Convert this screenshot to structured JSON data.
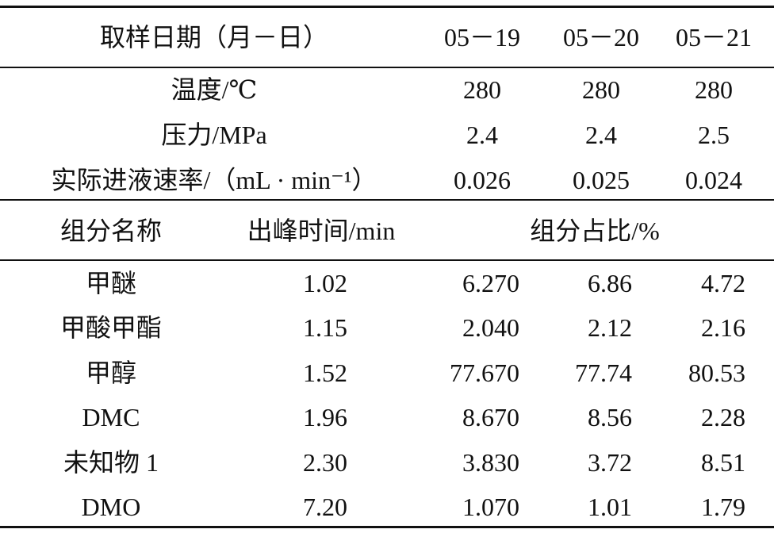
{
  "header": {
    "label": "取样日期（月－日）",
    "dates": [
      "05－19",
      "05－20",
      "05－21"
    ]
  },
  "conditions": [
    {
      "label": "温度/℃",
      "values": [
        "280",
        "280",
        "280"
      ]
    },
    {
      "label": "压力/MPa",
      "values": [
        "2.4",
        "2.4",
        "2.5"
      ]
    },
    {
      "label": "实际进液速率/（mL · min⁻¹）",
      "values": [
        "0.026",
        "0.025",
        "0.024"
      ]
    }
  ],
  "subheader": {
    "name": "组分名称",
    "time": "出峰时间/min",
    "share": "组分占比/%"
  },
  "rows": [
    {
      "name": "甲醚",
      "time": "1.02",
      "values": [
        "6.270",
        "6.86",
        "4.72"
      ]
    },
    {
      "name": "甲酸甲酯",
      "time": "1.15",
      "values": [
        "2.040",
        "2.12",
        "2.16"
      ]
    },
    {
      "name": "甲醇",
      "time": "1.52",
      "values": [
        "77.670",
        "77.74",
        "80.53"
      ]
    },
    {
      "name": "DMC",
      "time": "1.96",
      "values": [
        "8.670",
        "8.56",
        "2.28"
      ]
    },
    {
      "name": "未知物 1",
      "time": "2.30",
      "values": [
        "3.830",
        "3.72",
        "8.51"
      ]
    },
    {
      "name": "DMO",
      "time": "7.20",
      "values": [
        "1.070",
        "1.01",
        "1.79"
      ]
    }
  ]
}
